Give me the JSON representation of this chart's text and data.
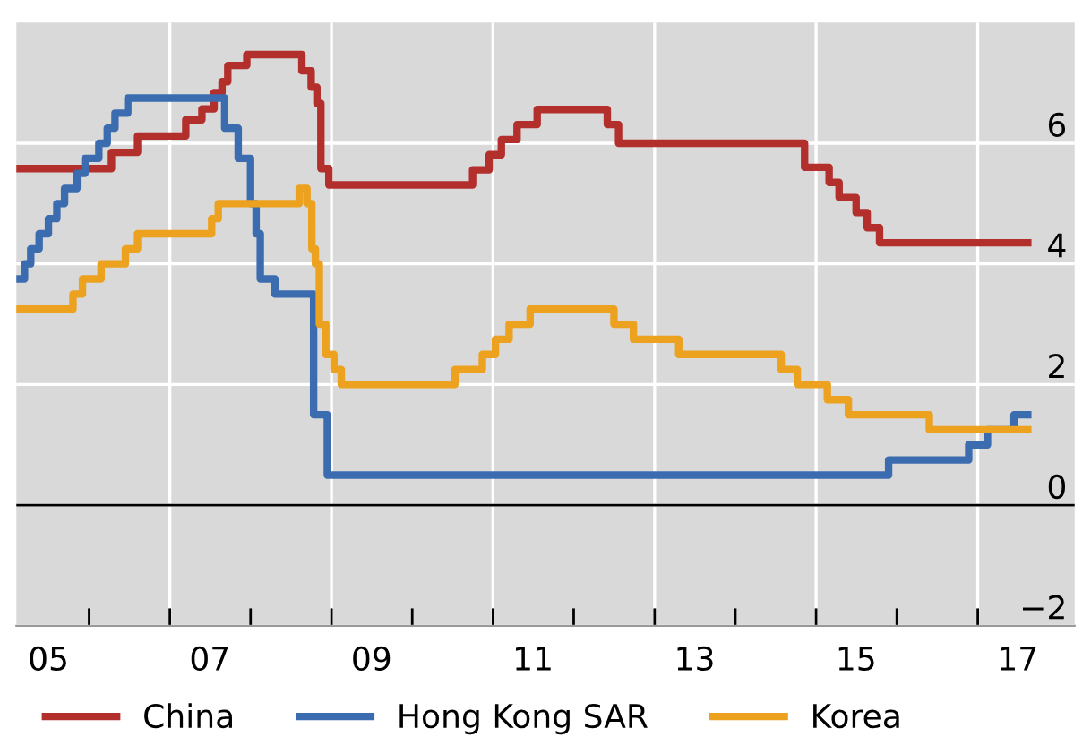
{
  "chart_data": {
    "type": "step",
    "series": [
      {
        "name": "China",
        "color": "#b22f2c",
        "x": [
          "2005-02-06",
          "2006-04-12",
          "2006-08-08",
          "2007-03-14",
          "2007-05-26",
          "2007-07-20",
          "2007-08-25",
          "2007-09-20",
          "2007-12-15",
          "2008-08-20",
          "2008-10-01",
          "2008-10-27",
          "2008-11-14",
          "2008-12-20",
          "2010-10-01",
          "2010-12-15",
          "2011-02-08",
          "2011-04-20",
          "2011-07-20",
          "2012-06-01",
          "2012-07-22",
          "2014-11-10",
          "2015-03-01",
          "2015-04-15",
          "2015-07-01",
          "2015-08-20",
          "2015-10-15",
          "2017-08-15"
        ],
        "values": [
          5.58,
          5.85,
          6.12,
          6.39,
          6.57,
          6.84,
          7.02,
          7.29,
          7.47,
          7.2,
          6.93,
          6.66,
          5.58,
          5.31,
          5.56,
          5.81,
          6.06,
          6.31,
          6.56,
          6.31,
          6.0,
          5.6,
          5.35,
          5.1,
          4.85,
          4.6,
          4.35,
          4.35
        ]
      },
      {
        "name": "Hong Kong SAR",
        "color": "#3b6cb0",
        "x": [
          "2005-02-06",
          "2005-03-15",
          "2005-04-12",
          "2005-05-20",
          "2005-07-01",
          "2005-08-08",
          "2005-09-12",
          "2005-11-07",
          "2005-12-13",
          "2006-02-14",
          "2006-03-24",
          "2006-04-28",
          "2006-06-25",
          "2007-09-06",
          "2007-11-06",
          "2008-01-01",
          "2008-01-26",
          "2008-02-14",
          "2008-04-20",
          "2008-10-12",
          "2008-12-13",
          "2015-11-25",
          "2016-11-21",
          "2017-02-14",
          "2017-06-14",
          "2017-08-15"
        ],
        "values": [
          3.75,
          4.0,
          4.25,
          4.5,
          4.75,
          5.0,
          5.25,
          5.5,
          5.75,
          6.0,
          6.25,
          6.5,
          6.75,
          6.25,
          5.75,
          5.0,
          4.5,
          3.75,
          3.5,
          1.5,
          0.5,
          0.75,
          1.0,
          1.25,
          1.5,
          1.5
        ]
      },
      {
        "name": "Korea",
        "color": "#eca11f",
        "x": [
          "2005-02-06",
          "2005-10-20",
          "2005-12-02",
          "2006-02-24",
          "2006-06-14",
          "2006-08-08",
          "2007-07-09",
          "2007-08-08",
          "2008-08-08",
          "2008-09-12",
          "2008-10-04",
          "2008-10-20",
          "2008-11-07",
          "2008-12-06",
          "2009-01-12",
          "2009-02-14",
          "2010-07-13",
          "2010-11-14",
          "2011-01-12",
          "2011-03-15",
          "2011-06-18",
          "2012-07-01",
          "2012-09-27",
          "2013-04-20",
          "2014-07-27",
          "2014-10-08",
          "2015-02-21",
          "2015-05-27",
          "2016-05-27",
          "2017-08-15"
        ],
        "values": [
          3.25,
          3.5,
          3.75,
          4.0,
          4.25,
          4.5,
          4.75,
          5.0,
          5.25,
          5.0,
          4.25,
          4.0,
          3.0,
          2.5,
          2.25,
          2.0,
          2.25,
          2.5,
          2.75,
          3.0,
          3.25,
          3.0,
          2.75,
          2.5,
          2.25,
          2.0,
          1.75,
          1.5,
          1.25,
          1.25
        ]
      }
    ],
    "xlim": [
      "2005-02-06",
      "2018-03-15"
    ],
    "xticks": [
      {
        "value": "2005-07-01",
        "label": "05"
      },
      {
        "value": "2006-01-01",
        "label": null
      },
      {
        "value": "2007-01-01",
        "label": null
      },
      {
        "value": "2007-07-01",
        "label": "07"
      },
      {
        "value": "2008-01-01",
        "label": null
      },
      {
        "value": "2009-01-01",
        "label": null
      },
      {
        "value": "2009-07-01",
        "label": "09"
      },
      {
        "value": "2010-01-01",
        "label": null
      },
      {
        "value": "2011-01-01",
        "label": null
      },
      {
        "value": "2011-07-01",
        "label": "11"
      },
      {
        "value": "2012-01-01",
        "label": null
      },
      {
        "value": "2013-01-01",
        "label": null
      },
      {
        "value": "2013-07-01",
        "label": "13"
      },
      {
        "value": "2014-01-01",
        "label": null
      },
      {
        "value": "2015-01-01",
        "label": null
      },
      {
        "value": "2015-07-01",
        "label": "15"
      },
      {
        "value": "2016-01-01",
        "label": null
      },
      {
        "value": "2017-01-01",
        "label": null
      },
      {
        "value": "2017-07-01",
        "label": "17"
      }
    ],
    "ylim": [
      -2,
      8
    ],
    "yticks": [
      {
        "value": -2,
        "label": "−2"
      },
      0,
      2,
      4,
      6
    ],
    "ref_lines": [
      {
        "axis": "y",
        "value": 0,
        "color": "#000000"
      }
    ],
    "grid": true,
    "legend": "bottom"
  }
}
